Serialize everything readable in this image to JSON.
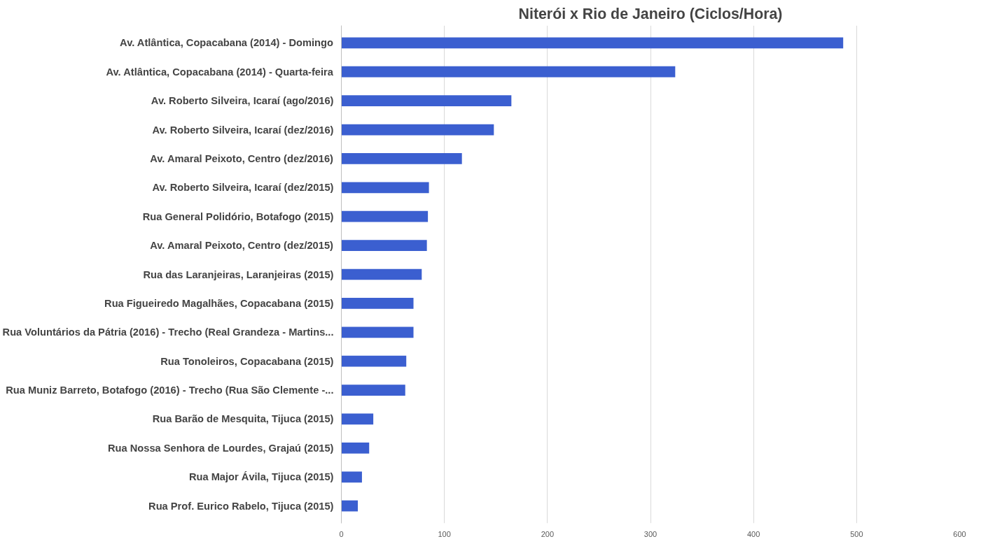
{
  "chart_data": {
    "type": "bar",
    "orientation": "horizontal",
    "title": "Niterói x Rio de Janeiro (Ciclos/Hora)",
    "categories": [
      "Av. Atlântica, Copacabana (2014) - Domingo",
      "Av. Atlântica, Copacabana (2014) - Quarta-feira",
      "Av. Roberto Silveira, Icaraí (ago/2016)",
      "Av. Roberto Silveira, Icaraí (dez/2016)",
      "Av. Amaral Peixoto, Centro (dez/2016)",
      "Av. Roberto Silveira, Icaraí (dez/2015)",
      "Rua General Polidório, Botafogo (2015)",
      "Av. Amaral Peixoto, Centro (dez/2015)",
      "Rua das Laranjeiras, Laranjeiras (2015)",
      "Rua Figueiredo Magalhães, Copacabana (2015)",
      "Rua Voluntários da Pátria (2016) - Trecho (Real Grandeza - Martins...",
      "Rua Tonoleiros, Copacabana (2015)",
      "Rua Muniz Barreto, Botafogo (2016) - Trecho (Rua São Clemente -...",
      "Rua Barão de Mesquita, Tijuca (2015)",
      "Rua Nossa Senhora de Lourdes, Grajaú (2015)",
      "Rua Major Ávila, Tijuca (2015)",
      "Rua Prof. Eurico Rabelo, Tijuca (2015)"
    ],
    "values": [
      487,
      324,
      165,
      148,
      117,
      85,
      84,
      83,
      78,
      70,
      70,
      63,
      62,
      31,
      27,
      20,
      16
    ],
    "color": "#3b5fd0",
    "xlim": [
      0,
      600
    ],
    "xticks": [
      0,
      100,
      200,
      300,
      400,
      500,
      600
    ],
    "grid": "x"
  }
}
